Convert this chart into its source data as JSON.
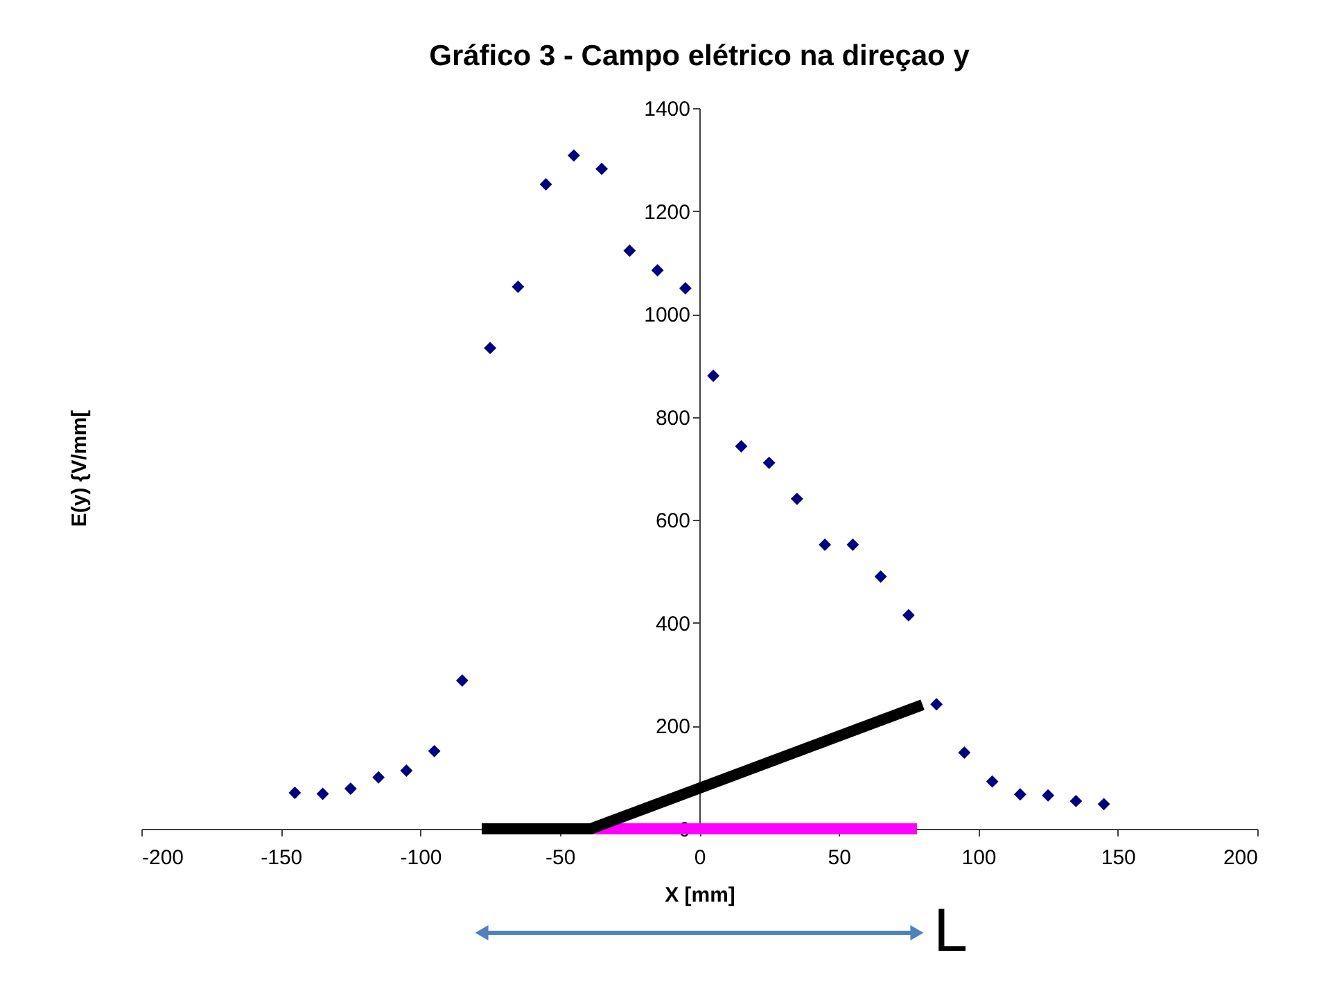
{
  "chart_data": {
    "type": "scatter",
    "title": "Gráfico 3 - Campo elétrico na direçao y",
    "xlabel": "X [mm]",
    "ylabel": "E(y)  {V/mm[",
    "xlim": [
      -200,
      200
    ],
    "xticks": [
      -200,
      -150,
      -100,
      -50,
      0,
      50,
      100,
      150,
      200
    ],
    "ylim": [
      0,
      1400
    ],
    "yticks": [
      0,
      200,
      400,
      600,
      800,
      1000,
      1200,
      1400
    ],
    "grid": false,
    "marker": "diamond",
    "x": [
      -145,
      -135,
      -125,
      -115,
      -105,
      -95,
      -85,
      -75,
      -65,
      -55,
      -45,
      -35,
      -25,
      -15,
      -5,
      5,
      15,
      25,
      35,
      45,
      55,
      65,
      75,
      85,
      95,
      105,
      115,
      125,
      135,
      145
    ],
    "series": [
      {
        "color": "#000080",
        "values": [
          70,
          68,
          78,
          100,
          113,
          151,
          288,
          934,
          1053,
          1252,
          1308,
          1282,
          1123,
          1085,
          1050,
          880,
          743,
          711,
          641,
          552,
          552,
          490,
          415,
          242,
          148,
          92,
          67,
          65,
          54,
          48
        ]
      },
      {
        "type": "line",
        "color": "#ff00ff",
        "marker": "none",
        "line_style": "solid",
        "x": [
          -78,
          78
        ],
        "values": [
          0,
          0
        ]
      },
      {
        "type": "line",
        "color": "#000000",
        "marker": "none",
        "line_style": "solid",
        "x": [
          -78,
          -39,
          80
        ],
        "values": [
          0,
          0,
          241
        ]
      }
    ],
    "annotations": [
      "L"
    ]
  }
}
